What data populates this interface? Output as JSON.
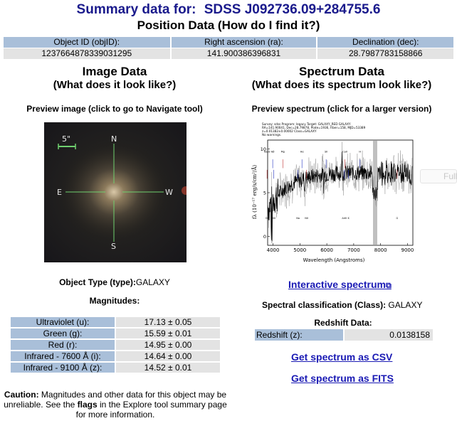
{
  "header": {
    "prefix": "Summary data for:",
    "object_name": "SDSS J092736.09+284755.6"
  },
  "position": {
    "title": "Position Data (How do I find it?)",
    "columns": [
      "Object ID  (objID):",
      "Right ascension  (ra):",
      "Declination  (dec):"
    ],
    "values": [
      "1237664878339031295",
      "141.900386396831",
      "28.7987783158866"
    ]
  },
  "image": {
    "title": "Image Data",
    "subtitle": "(What does it look like?)",
    "preview_label": "Preview image (click to go to Navigate tool)",
    "scale_label": "5\"",
    "compass": {
      "n": "N",
      "s": "S",
      "e": "E",
      "w": "W"
    },
    "object_type_label": "Object Type (type):",
    "object_type_value": "GALAXY"
  },
  "magnitudes": {
    "title": "Magnitudes:",
    "rows": [
      {
        "band": "Ultraviolet (u):",
        "value": "17.13 ± 0.05"
      },
      {
        "band": "Green (g):",
        "value": "15.59 ± 0.01"
      },
      {
        "band": "Red (r):",
        "value": "14.95 ± 0.00"
      },
      {
        "band": "Infrared - 7600 Å (i):",
        "value": "14.64 ± 0.00"
      },
      {
        "band": "Infrared - 9100 Å (z):",
        "value": "14.52 ± 0.01"
      }
    ]
  },
  "caution": {
    "label": "Caution:",
    "text1": " Magnitudes and other data for this object may be unreliable. See the ",
    "flags": "flags",
    "text2": " in the Explore tool summary page for more information."
  },
  "spectrum": {
    "title": "Spectrum Data",
    "subtitle": "(What does its spectrum look like?)",
    "preview_label": "Preview spectrum (click for a larger version)",
    "plot_header": [
      "Survey: sdss  Program: legacy  Target: GALAXY_RED GALAXY",
      "RA=141.90041, Dec=28.79878, Plate=1936, Fiber=158, MJD=53389",
      "z=0.01382±0.00002  Class=GALAXY",
      "No warnings."
    ],
    "xlabel": "Wavelength (Angstroms)",
    "ylabel": "fλ (10⁻¹⁷ erg/s/cm²/Å)",
    "x_ticks": [
      "4000",
      "5000",
      "6000",
      "7000",
      "8000",
      "9000"
    ],
    "y_ticks": [
      "10",
      "5",
      "0"
    ],
    "line_labels": [
      "OII",
      "Hβ",
      "OIII",
      "Mg",
      "Na",
      "Hα",
      "NII",
      "SII",
      "ArIII",
      "CaII",
      "K",
      "H",
      "G",
      "Na D"
    ],
    "interactive_link": "Interactive spectrum",
    "class_label": "Spectral classification (Class):",
    "class_value": "GALAXY",
    "redshift_title": "Redshift Data:",
    "redshift_label": "Redshift (z):",
    "redshift_value": "0.0138158",
    "csv_link": "Get spectrum as CSV",
    "fits_link": "Get spectrum as FITS"
  },
  "full_button": "Full",
  "colors": {
    "title_blue": "#1a1a8c",
    "header_cell": "#a9bfd9",
    "value_cell": "#e3e3e3",
    "link_blue": "#1a1ab4"
  }
}
